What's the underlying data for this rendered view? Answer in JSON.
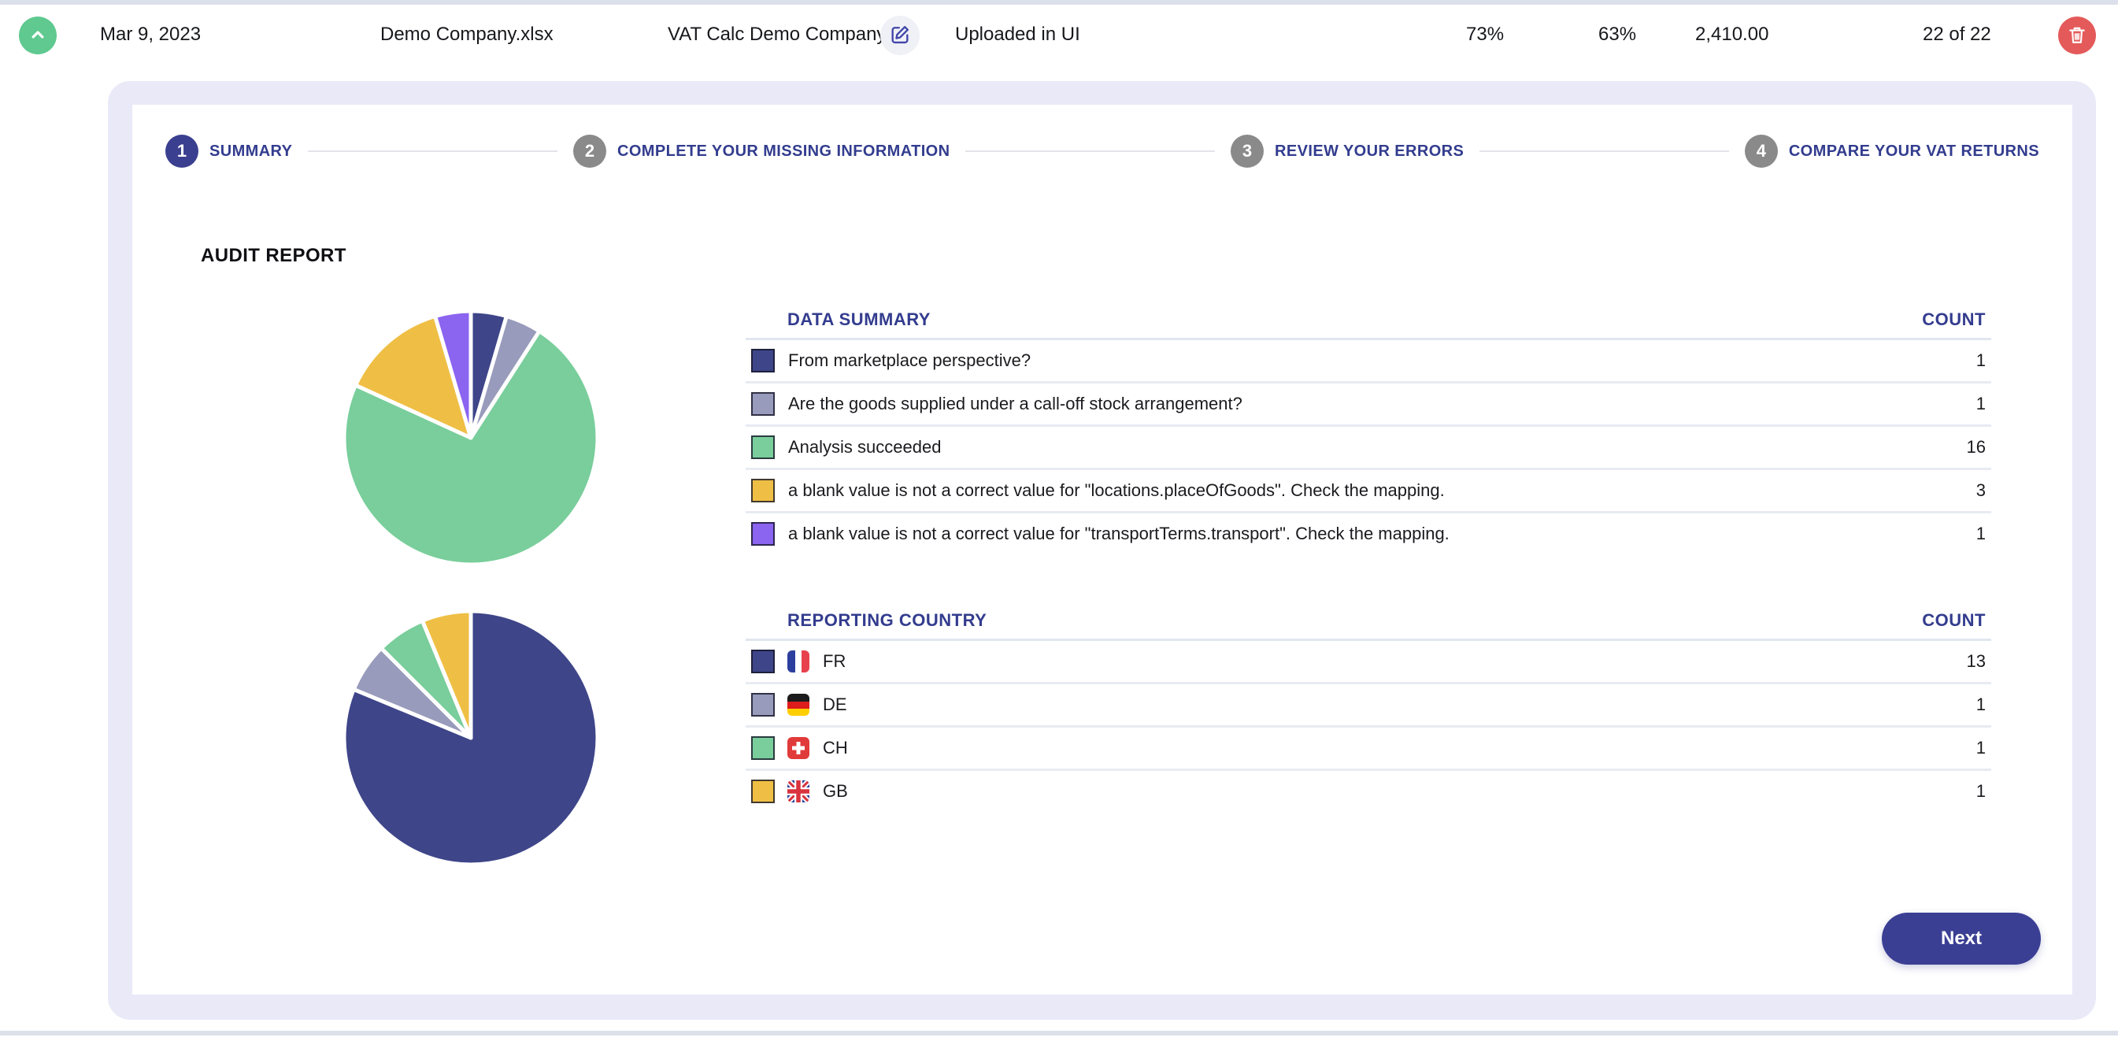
{
  "topbar": {
    "date": "Mar 9, 2023",
    "file_name": "Demo Company.xlsx",
    "company_name": "VAT Calc Demo Company",
    "upload_source": "Uploaded in UI",
    "metric_1": "73%",
    "metric_2": "63%",
    "amount": "2,410.00",
    "progress": "22 of 22"
  },
  "stepper": {
    "steps": [
      {
        "number": "1",
        "label": "SUMMARY",
        "active": true
      },
      {
        "number": "2",
        "label": "COMPLETE YOUR MISSING INFORMATION",
        "active": false
      },
      {
        "number": "3",
        "label": "REVIEW YOUR ERRORS",
        "active": false
      },
      {
        "number": "4",
        "label": "COMPARE YOUR VAT RETURNS",
        "active": false
      }
    ]
  },
  "audit": {
    "title": "AUDIT REPORT"
  },
  "tables": {
    "data_summary": {
      "title": "DATA SUMMARY",
      "count_label": "COUNT",
      "rows": [
        {
          "label": "From marketplace perspective?",
          "count": "1",
          "color": "#3e4589"
        },
        {
          "label": "Are the goods supplied under a call-off stock arrangement?",
          "count": "1",
          "color": "#989bbb"
        },
        {
          "label": "Analysis succeeded",
          "count": "16",
          "color": "#79ce9b"
        },
        {
          "label": "a blank value is not a correct value for \"locations.placeOfGoods\". Check the mapping.",
          "count": "3",
          "color": "#efbf45"
        },
        {
          "label": "a blank value is not a correct value for \"transportTerms.transport\". Check the mapping.",
          "count": "1",
          "color": "#8b64f0"
        }
      ]
    },
    "reporting_country": {
      "title": "REPORTING COUNTRY",
      "count_label": "COUNT",
      "rows": [
        {
          "code": "FR",
          "flag": "fr",
          "count": "13",
          "color": "#3e4589"
        },
        {
          "code": "DE",
          "flag": "de",
          "count": "1",
          "color": "#989bbb"
        },
        {
          "code": "CH",
          "flag": "ch",
          "count": "1",
          "color": "#79ce9b"
        },
        {
          "code": "GB",
          "flag": "gb",
          "count": "1",
          "color": "#efbf45"
        }
      ]
    }
  },
  "chart_data": [
    {
      "type": "pie",
      "title": "DATA SUMMARY",
      "labels": [
        "From marketplace perspective?",
        "Are the goods supplied under a call-off stock arrangement?",
        "Analysis succeeded",
        "a blank value is not a correct value for \"locations.placeOfGoods\". Check the mapping.",
        "a blank value is not a correct value for \"transportTerms.transport\". Check the mapping."
      ],
      "values": [
        1,
        1,
        16,
        3,
        1
      ],
      "colors": [
        "#3e4589",
        "#989bbb",
        "#79ce9b",
        "#efbf45",
        "#8b64f0"
      ],
      "total": 22,
      "legend_position": "none",
      "start_angle_deg": 0,
      "direction": "clockwise"
    },
    {
      "type": "pie",
      "title": "REPORTING COUNTRY",
      "labels": [
        "FR",
        "DE",
        "CH",
        "GB"
      ],
      "values": [
        13,
        1,
        1,
        1
      ],
      "colors": [
        "#3e4589",
        "#989bbb",
        "#79ce9b",
        "#efbf45"
      ],
      "total": 16,
      "legend_position": "none",
      "start_angle_deg": 0,
      "direction": "clockwise"
    }
  ],
  "next_button": {
    "label": "Next"
  },
  "colors": {
    "panel_bg": "#e9e9f8",
    "accent_indigo": "#333c8e",
    "active_step": "#3b3f8f",
    "inactive_step": "#8a8a8a",
    "next_button_bg": "#3b3f94",
    "delete_red": "#e45a5a",
    "collapse_green": "#5fc98f",
    "strip_gray": "#dce0ea"
  }
}
